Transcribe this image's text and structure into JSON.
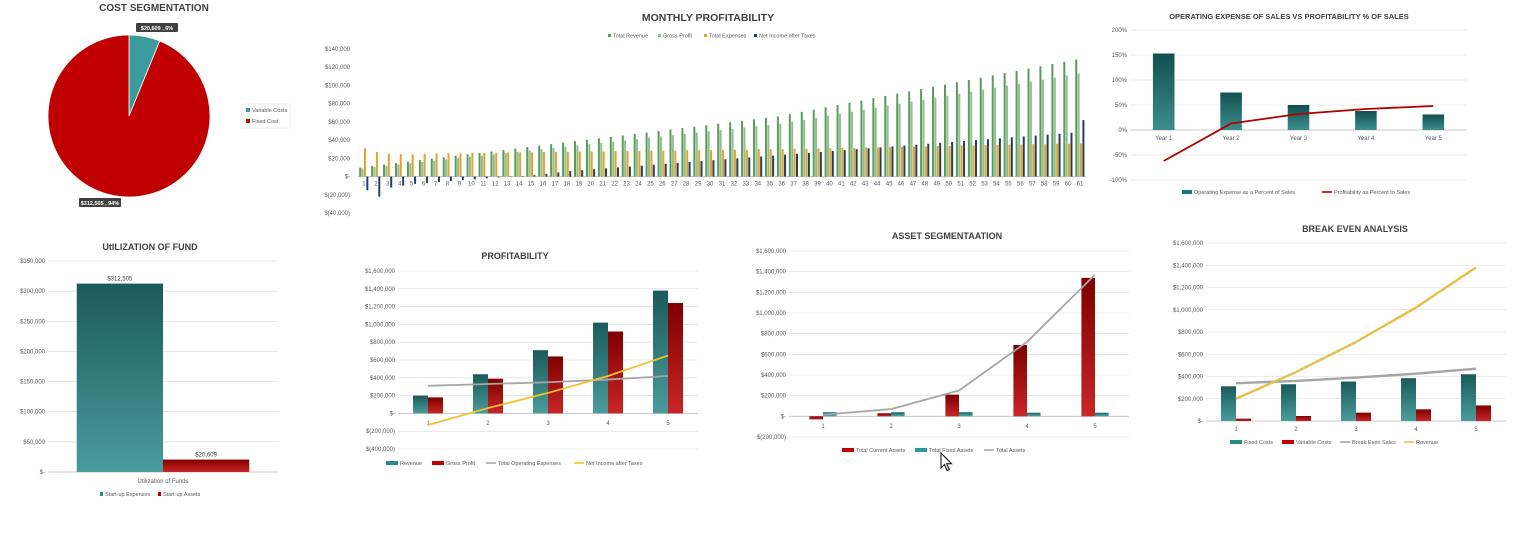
{
  "chart_data": [
    {
      "id": "cost",
      "type": "pie",
      "title": "COST SEGMENTATION",
      "slices": [
        {
          "name": "Variable Costs",
          "value": 20609,
          "label": "$20,609 , 6%",
          "color": "#3a9c9c"
        },
        {
          "name": "Fixed Cost",
          "value": 312505,
          "label": "$312,505 , 94%",
          "color": "#c00000"
        }
      ],
      "legend": "right"
    },
    {
      "id": "monthly",
      "type": "bar",
      "title": "MONTHLY PROFITABILITY",
      "categories": [
        "1",
        "2",
        "3",
        "4",
        "5",
        "6",
        "7",
        "8",
        "9",
        "10",
        "11",
        "12",
        "13",
        "14",
        "15",
        "16",
        "17",
        "18",
        "19",
        "20",
        "21",
        "22",
        "23",
        "24",
        "25",
        "26",
        "27",
        "28",
        "29",
        "30",
        "31",
        "32",
        "33",
        "34",
        "35",
        "36",
        "37",
        "38",
        "39",
        "40",
        "41",
        "42",
        "43",
        "44",
        "45",
        "46",
        "47",
        "48",
        "49",
        "50",
        "51",
        "52",
        "53",
        "54",
        "55",
        "56",
        "57",
        "58",
        "59",
        "60",
        "61"
      ],
      "ylim": [
        -40000,
        140000
      ],
      "yticks": [
        -40000,
        -20000,
        0,
        20000,
        40000,
        60000,
        80000,
        100000,
        120000,
        140000
      ],
      "ytick_labels": [
        "$(40,000)",
        "$(20,000)",
        "$-",
        "$20,000",
        "$40,000",
        "$60,000",
        "$80,000",
        "$100,000",
        "$120,000",
        "$140,000"
      ],
      "series": [
        {
          "name": "Total Revenue",
          "color": "#5b9a5b",
          "values": [
            10000,
            11600,
            13200,
            14800,
            16400,
            18000,
            19600,
            21200,
            22800,
            24400,
            26000,
            27600,
            29200,
            30800,
            32400,
            34000,
            35600,
            37200,
            38800,
            40400,
            42000,
            43600,
            45200,
            46800,
            48400,
            50000,
            51600,
            53200,
            54800,
            56400,
            58000,
            59600,
            61200,
            62800,
            64400,
            66000,
            68500,
            71000,
            73500,
            76000,
            78500,
            81000,
            83500,
            86000,
            88500,
            91000,
            93500,
            96000,
            98500,
            101000,
            103500,
            106000,
            108500,
            111000,
            113500,
            116000,
            118500,
            121000,
            123500,
            126000,
            128500
          ]
        },
        {
          "name": "Gross Profit",
          "color": "#8fbf8f",
          "values": [
            9000,
            10400,
            11800,
            13200,
            14600,
            16000,
            17400,
            18800,
            20200,
            21600,
            23000,
            24400,
            25800,
            27200,
            28600,
            30000,
            31400,
            32800,
            34200,
            35600,
            37000,
            38400,
            39800,
            41200,
            42600,
            44000,
            45400,
            46800,
            48200,
            49600,
            51000,
            52400,
            53800,
            55200,
            56600,
            58000,
            60200,
            62400,
            64600,
            66800,
            69000,
            71200,
            73400,
            75600,
            77800,
            80000,
            82200,
            84400,
            86600,
            88800,
            91000,
            93200,
            95400,
            97600,
            99800,
            102000,
            104200,
            106400,
            108600,
            110800,
            113000
          ]
        },
        {
          "name": "Total Expenses",
          "color": "#e5a12a",
          "values": [
            31000,
            27000,
            25000,
            24500,
            24500,
            25000,
            25000,
            25500,
            25500,
            26000,
            26000,
            26000,
            26500,
            26500,
            26500,
            27000,
            27000,
            27000,
            27500,
            27500,
            27500,
            28000,
            28000,
            28000,
            28500,
            28500,
            28500,
            29000,
            29000,
            29000,
            29500,
            29500,
            29500,
            30000,
            30000,
            30000,
            30500,
            30500,
            31000,
            31000,
            31500,
            31500,
            32000,
            32000,
            32500,
            32500,
            33000,
            33000,
            33500,
            33500,
            34000,
            34000,
            34500,
            34500,
            35000,
            35000,
            35500,
            35500,
            36000,
            36000,
            36500
          ]
        },
        {
          "name": "Net Income after Taxes",
          "color": "#1f3f5f",
          "values": [
            -15000,
            -22000,
            -12000,
            -10000,
            -8000,
            -7000,
            -6000,
            -5000,
            -4000,
            -3000,
            -2000,
            -1000,
            -500,
            500,
            1500,
            3000,
            4500,
            6000,
            7000,
            8000,
            9000,
            10000,
            11000,
            12000,
            13000,
            14000,
            15000,
            16000,
            17000,
            18000,
            19000,
            20000,
            21000,
            22000,
            23000,
            24000,
            25000,
            26000,
            27000,
            28000,
            29000,
            30000,
            31000,
            32000,
            33000,
            34000,
            35000,
            36000,
            37000,
            38000,
            39000,
            40000,
            41000,
            42000,
            43000,
            44000,
            45000,
            46000,
            47000,
            48000,
            62000
          ]
        }
      ],
      "legend": "top"
    },
    {
      "id": "opex",
      "type": "bar",
      "title": "OPERATING EXPENSE  OF SALES VS PROFITABILITY % OF SALES",
      "categories": [
        "Year 1",
        "Year 2",
        "Year 3",
        "Year 4",
        "Year 5"
      ],
      "ylim": [
        -100,
        200
      ],
      "yticks": [
        -100,
        -50,
        0,
        50,
        100,
        150,
        200
      ],
      "ytick_labels": [
        "-100%",
        "-50%",
        "0%",
        "50%",
        "100%",
        "150%",
        "200%"
      ],
      "series": [
        {
          "name": "Operating Expense as a Percent of Sales",
          "kind": "bar",
          "color": "#1a7a7a",
          "values": [
            153,
            75,
            50,
            38,
            31
          ]
        },
        {
          "name": "Profitability as Percent to Sales",
          "kind": "line",
          "color": "#b00000",
          "values": [
            -62,
            13,
            32,
            42,
            48
          ]
        }
      ],
      "legend": "bottom"
    },
    {
      "id": "fund",
      "type": "bar",
      "title": "UtILIZATION OF FUND",
      "categories": [
        "Utilization of Funds"
      ],
      "ylim": [
        0,
        350000
      ],
      "yticks": [
        0,
        50000,
        100000,
        150000,
        200000,
        250000,
        300000,
        350000
      ],
      "ytick_labels": [
        "$-",
        "$50,000",
        "$100,000",
        "$150,000",
        "$200,000",
        "$250,000",
        "$300,000",
        "$350,000"
      ],
      "series": [
        {
          "name": "Start-up Expenses",
          "color": "#2a8a8a",
          "values": [
            312505
          ],
          "labels": [
            "$312,505"
          ]
        },
        {
          "name": "Start-up Assets",
          "color": "#c00000",
          "values": [
            20609
          ],
          "labels": [
            "$20,609"
          ]
        }
      ],
      "legend": "bottom"
    },
    {
      "id": "profit",
      "type": "bar",
      "title": "PROFITABILITY",
      "categories": [
        "1",
        "2",
        "3",
        "4",
        "5"
      ],
      "ylim": [
        -400000,
        1600000
      ],
      "yticks": [
        -400000,
        -200000,
        0,
        200000,
        400000,
        600000,
        800000,
        1000000,
        1200000,
        1400000,
        1600000
      ],
      "ytick_labels": [
        "$(400,000)",
        "$(200,000)",
        "$-",
        "$200,000",
        "$400,000",
        "$600,000",
        "$800,000",
        "$1,000,000",
        "$1,200,000",
        "$1,400,000",
        "$1,600,000"
      ],
      "series": [
        {
          "name": "Revenue",
          "kind": "bar",
          "color": "#2a8a8a",
          "values": [
            200000,
            440000,
            710000,
            1020000,
            1380000
          ]
        },
        {
          "name": "Gross Profit",
          "kind": "bar",
          "color": "#c00000",
          "values": [
            180000,
            390000,
            640000,
            920000,
            1240000
          ]
        },
        {
          "name": "Total Operating Expenses",
          "kind": "line",
          "color": "#a6a6a6",
          "values": [
            310000,
            330000,
            350000,
            380000,
            420000
          ]
        },
        {
          "name": "Net Income after Taxes",
          "kind": "line",
          "color": "#f2c12e",
          "values": [
            -130000,
            60000,
            230000,
            420000,
            650000
          ]
        }
      ],
      "legend": "bottom"
    },
    {
      "id": "asset",
      "type": "bar",
      "title": "ASSET SEGMENTAATION",
      "categories": [
        "1",
        "2",
        "3",
        "4",
        "5"
      ],
      "ylim": [
        -200000,
        1600000
      ],
      "yticks": [
        -200000,
        0,
        200000,
        400000,
        600000,
        800000,
        1000000,
        1200000,
        1400000,
        1600000
      ],
      "ytick_labels": [
        "$(200,000)",
        "$-",
        "$200,000",
        "$400,000",
        "$600,000",
        "$800,000",
        "$1,000,000",
        "$1,200,000",
        "$1,400,000",
        "$1,600,000"
      ],
      "series": [
        {
          "name": "Total Current Assets",
          "kind": "bar",
          "color": "#c00000",
          "values": [
            -30000,
            30000,
            210000,
            690000,
            1340000
          ]
        },
        {
          "name": "Total Fixed Assets",
          "kind": "bar",
          "color": "#2a9a9a",
          "values": [
            40000,
            40000,
            40000,
            35000,
            35000
          ]
        },
        {
          "name": "Total Assets",
          "kind": "line",
          "color": "#a6a6a6",
          "values": [
            15000,
            70000,
            250000,
            720000,
            1370000
          ]
        }
      ],
      "legend": "bottom"
    },
    {
      "id": "breakeven",
      "type": "bar",
      "title": "BREAK EVEN ANALYSIS",
      "categories": [
        "1",
        "2",
        "3",
        "4",
        "5"
      ],
      "ylim": [
        0,
        1600000
      ],
      "yticks": [
        0,
        200000,
        400000,
        600000,
        800000,
        1000000,
        1200000,
        1400000,
        1600000
      ],
      "ytick_labels": [
        "$-",
        "$200,000",
        "$400,000",
        "$600,000",
        "$800,000",
        "$1,000,000",
        "$1,200,000",
        "$1,400,000",
        "$1,600,000"
      ],
      "series": [
        {
          "name": "Fixed Costs",
          "kind": "bar",
          "color": "#2a8a8a",
          "values": [
            312000,
            330000,
            355000,
            385000,
            420000
          ]
        },
        {
          "name": "Variable Costs",
          "kind": "bar",
          "color": "#c00000",
          "values": [
            21000,
            45000,
            75000,
            105000,
            140000
          ]
        },
        {
          "name": "Break Even Sales",
          "kind": "line",
          "color": "#a6a6a6",
          "values": [
            340000,
            360000,
            390000,
            425000,
            470000
          ]
        },
        {
          "name": "Revenue",
          "kind": "line",
          "color": "#e3c04a",
          "values": [
            200000,
            440000,
            710000,
            1020000,
            1380000
          ]
        }
      ],
      "legend": "bottom"
    }
  ]
}
